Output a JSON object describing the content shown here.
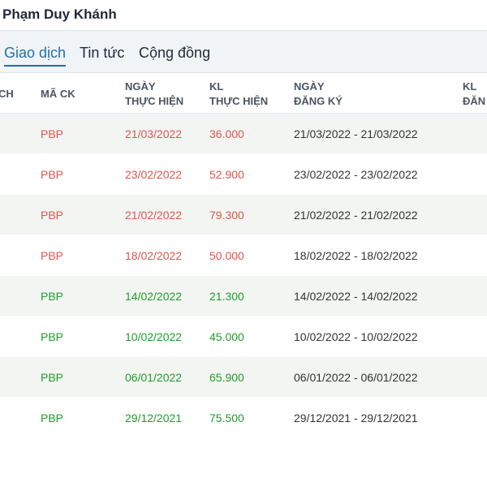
{
  "header": {
    "title": "Phạm Duy Khánh"
  },
  "tabs": [
    {
      "label": "Giao dịch",
      "active": true
    },
    {
      "label": "Tin tức",
      "active": false
    },
    {
      "label": "Cộng đồng",
      "active": false
    }
  ],
  "columns": {
    "c0": [
      "CH"
    ],
    "c1": [
      "MÃ CK"
    ],
    "c2": [
      "NGÀY",
      "THỰC HIỆN"
    ],
    "c3": [
      "KL",
      "THỰC HIỆN"
    ],
    "c4": [
      "NGÀY",
      "ĐĂNG KÝ"
    ],
    "c5": [
      "KL",
      "ĐĂN"
    ]
  },
  "colors": {
    "sell": "#e0534f",
    "buy": "#1f9d2a",
    "accent": "#1f6fb2"
  },
  "rows": [
    {
      "ticker": "PBP",
      "date": "21/03/2022",
      "volume": "36.000",
      "reg": "21/03/2022 - 21/03/2022",
      "side": "sell"
    },
    {
      "ticker": "PBP",
      "date": "23/02/2022",
      "volume": "52.900",
      "reg": "23/02/2022 - 23/02/2022",
      "side": "sell"
    },
    {
      "ticker": "PBP",
      "date": "21/02/2022",
      "volume": "79.300",
      "reg": "21/02/2022 - 21/02/2022",
      "side": "sell"
    },
    {
      "ticker": "PBP",
      "date": "18/02/2022",
      "volume": "50.000",
      "reg": "18/02/2022 - 18/02/2022",
      "side": "sell"
    },
    {
      "ticker": "PBP",
      "date": "14/02/2022",
      "volume": "21.300",
      "reg": "14/02/2022 - 14/02/2022",
      "side": "buy"
    },
    {
      "ticker": "PBP",
      "date": "10/02/2022",
      "volume": "45.000",
      "reg": "10/02/2022 - 10/02/2022",
      "side": "buy"
    },
    {
      "ticker": "PBP",
      "date": "06/01/2022",
      "volume": "65.900",
      "reg": "06/01/2022 - 06/01/2022",
      "side": "buy"
    },
    {
      "ticker": "PBP",
      "date": "29/12/2021",
      "volume": "75.500",
      "reg": "29/12/2021 - 29/12/2021",
      "side": "buy"
    }
  ]
}
